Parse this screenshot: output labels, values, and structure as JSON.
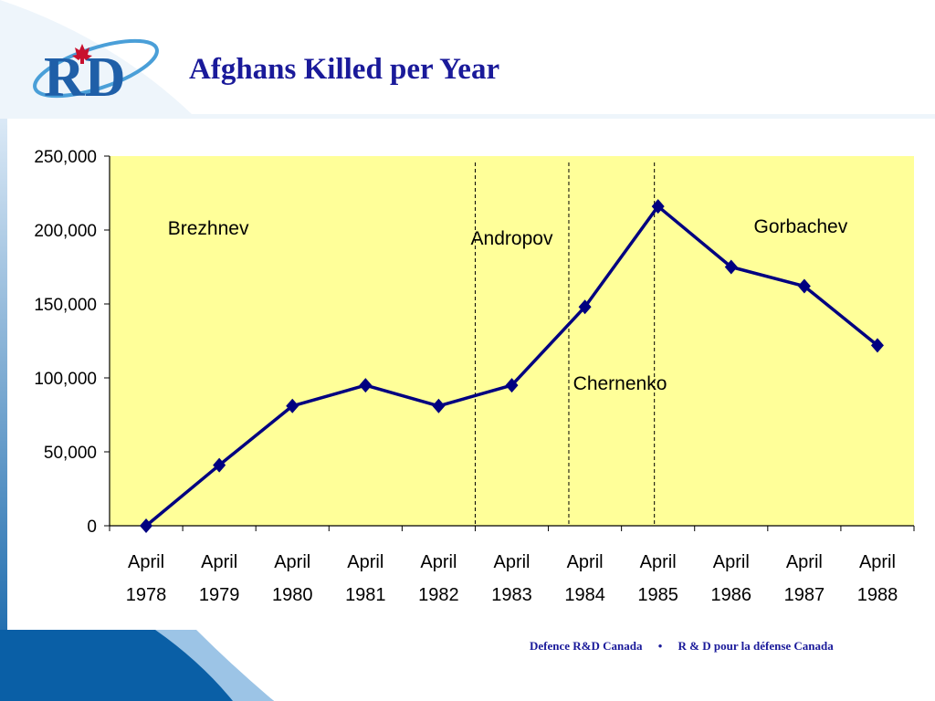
{
  "slide": {
    "title": "Afghans Killed per Year",
    "footer_left": "Defence R&D Canada",
    "footer_separator": "•",
    "footer_right": "R & D pour la défense Canada",
    "logo_text": "RD",
    "logo_icon": "maple-leaf-icon",
    "colors": {
      "title": "#1a1a9a",
      "plot_background": "#ffff99",
      "series_line": "#000080",
      "border_band": "#0a5fa6"
    }
  },
  "chart_data": {
    "type": "line",
    "title": "",
    "xlabel": "",
    "ylabel": "",
    "categories": [
      "April 1978",
      "April 1979",
      "April 1980",
      "April 1981",
      "April 1982",
      "April 1983",
      "April 1984",
      "April 1985",
      "April 1986",
      "April 1987",
      "April 1988"
    ],
    "category_lines": [
      [
        "April",
        "1978"
      ],
      [
        "April",
        "1979"
      ],
      [
        "April",
        "1980"
      ],
      [
        "April",
        "1981"
      ],
      [
        "April",
        "1982"
      ],
      [
        "April",
        "1983"
      ],
      [
        "April",
        "1984"
      ],
      [
        "April",
        "1985"
      ],
      [
        "April",
        "1986"
      ],
      [
        "April",
        "1987"
      ],
      [
        "April",
        "1988"
      ]
    ],
    "series": [
      {
        "values": [
          0,
          41000,
          81000,
          95000,
          81000,
          95000,
          148000,
          216000,
          175000,
          162000,
          122000
        ]
      }
    ],
    "ylim": [
      0,
      250000
    ],
    "yticks": [
      0,
      50000,
      100000,
      150000,
      200000,
      250000
    ],
    "ytick_labels": [
      "0",
      "50,000",
      "100,000",
      "150,000",
      "200,000",
      "250,000"
    ],
    "grid": false,
    "marker": "diamond",
    "period_dividers": [
      4.5,
      5.78,
      6.95
    ],
    "annotations": [
      {
        "text": "Brezhnev",
        "x": 0.85,
        "y": 197000
      },
      {
        "text": "Andropov",
        "x": 5.0,
        "y": 190000
      },
      {
        "text": "Chernenko",
        "x": 6.48,
        "y": 92000
      },
      {
        "text": "Gorbachev",
        "x": 8.95,
        "y": 198000
      }
    ]
  }
}
